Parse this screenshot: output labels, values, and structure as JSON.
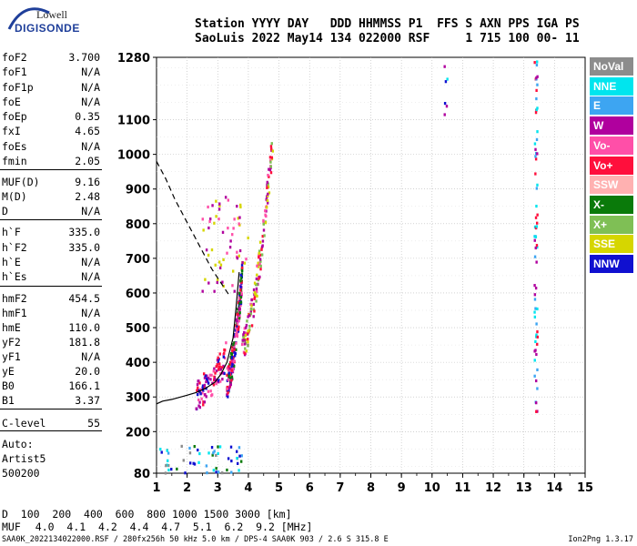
{
  "logo": {
    "line1": "Lowell",
    "line2": "DIGISONDE"
  },
  "header": {
    "line1": "Station YYYY DAY   DDD HHMMSS P1  FFS S AXN PPS IGA PS",
    "line2": "SaoLuis 2022 May14 134 022000 RSF     1 715 100 00- 11"
  },
  "params": [
    {
      "name": "foF2",
      "value": "3.700"
    },
    {
      "name": "foF1",
      "value": "N/A"
    },
    {
      "name": "foF1p",
      "value": "N/A"
    },
    {
      "name": "foE",
      "value": "N/A"
    },
    {
      "name": "foEp",
      "value": "0.35"
    },
    {
      "name": "fxI",
      "value": "4.65"
    },
    {
      "name": "foEs",
      "value": "N/A"
    },
    {
      "name": "fmin",
      "value": "2.05"
    },
    {
      "name": "MUF(D)",
      "value": "9.16"
    },
    {
      "name": "M(D)",
      "value": "2.48"
    },
    {
      "name": "D",
      "value": "N/A"
    },
    {
      "name": "h`F",
      "value": "335.0"
    },
    {
      "name": "h`F2",
      "value": "335.0"
    },
    {
      "name": "h`E",
      "value": "N/A"
    },
    {
      "name": "h`Es",
      "value": "N/A"
    },
    {
      "name": "hmF2",
      "value": "454.5"
    },
    {
      "name": "hmF1",
      "value": "N/A"
    },
    {
      "name": "hmE",
      "value": "110.0"
    },
    {
      "name": "yF2",
      "value": "181.8"
    },
    {
      "name": "yF1",
      "value": "N/A"
    },
    {
      "name": "yE",
      "value": "20.0"
    },
    {
      "name": "B0",
      "value": "166.1"
    },
    {
      "name": "B1",
      "value": "3.37"
    },
    {
      "name": "C-level",
      "value": "55"
    }
  ],
  "auto": {
    "line1": "Auto:",
    "line2": "Artist5",
    "line3": "500200"
  },
  "legend": [
    {
      "label": "NoVal",
      "color": "#8c8c8c"
    },
    {
      "label": "NNE",
      "color": "#00e5ee"
    },
    {
      "label": "E",
      "color": "#3da5f2"
    },
    {
      "label": "W",
      "color": "#b0009e"
    },
    {
      "label": "Vo-",
      "color": "#ff4fa8"
    },
    {
      "label": "Vo+",
      "color": "#ff0f3c"
    },
    {
      "label": "SSW",
      "color": "#ffb1b1"
    },
    {
      "label": "X-",
      "color": "#0a7a0a"
    },
    {
      "label": "X+",
      "color": "#7fbf55"
    },
    {
      "label": "SSE",
      "color": "#d6d600"
    },
    {
      "label": "NNW",
      "color": "#1010d0"
    }
  ],
  "muf_table": {
    "d_label": "D",
    "d_values": "  100  200  400  600  800 1000 1500 3000 [km]",
    "muf_label": "MUF",
    "muf_values": "4.0  4.1  4.2  4.4  4.7  5.1  6.2  9.2 [MHz]"
  },
  "footer": {
    "left": "SAA0K_2022134022000.RSF / 280fx256h 50 kHz 5.0 km / DPS-4 SAA0K 903 / 2.6 S 315.8 E",
    "right": "Ion2Png 1.3.17"
  },
  "chart_data": {
    "type": "scatter",
    "title": "",
    "xlabel": "",
    "ylabel": "",
    "xlim": [
      1,
      15
    ],
    "ylim": [
      80,
      1280
    ],
    "x_ticks": [
      1,
      2,
      3,
      4,
      5,
      6,
      7,
      8,
      9,
      10,
      11,
      12,
      13,
      14,
      15
    ],
    "y_ticks": [
      80,
      200,
      300,
      400,
      500,
      600,
      700,
      800,
      900,
      1000,
      1100,
      1280
    ],
    "grid": true,
    "virtual_height_profile": {
      "x": [
        1.0,
        1.2,
        1.5,
        2.0,
        2.3,
        2.6,
        2.9,
        3.1,
        3.3,
        3.5,
        3.6,
        3.7
      ],
      "y": [
        280,
        288,
        293,
        305,
        313,
        325,
        342,
        365,
        400,
        470,
        560,
        660
      ]
    },
    "true_height_profile": {
      "x": [
        1.0,
        1.3,
        1.6,
        1.9,
        2.2,
        2.5,
        2.8,
        3.1,
        3.4
      ],
      "y": [
        980,
        930,
        870,
        820,
        770,
        720,
        670,
        630,
        590
      ]
    },
    "echo_clusters": [
      {
        "name": "F-trace-core",
        "x": [
          3.3,
          3.8
        ],
        "y": [
          340,
          650
        ],
        "count": 220,
        "colors": [
          "#b0009e",
          "#ff0f3c",
          "#ff4fa8",
          "#0a7a0a",
          "#1010d0"
        ]
      },
      {
        "name": "F-trace-lower",
        "x": [
          2.3,
          3.3
        ],
        "y": [
          310,
          420
        ],
        "count": 90,
        "colors": [
          "#b0009e",
          "#1010d0",
          "#ff4fa8",
          "#ff0f3c"
        ]
      },
      {
        "name": "F-trace-upper",
        "x": [
          3.8,
          4.8
        ],
        "y": [
          450,
          1040
        ],
        "count": 150,
        "colors": [
          "#b0009e",
          "#ff4fa8",
          "#ff0f3c",
          "#d6d600",
          "#7fbf55"
        ]
      },
      {
        "name": "spread-F",
        "x": [
          2.5,
          4.0
        ],
        "y": [
          600,
          880
        ],
        "count": 60,
        "colors": [
          "#b0009e",
          "#ff4fa8",
          "#d6d600"
        ]
      },
      {
        "name": "low-echoes",
        "x": [
          1.0,
          3.8
        ],
        "y": [
          80,
          160
        ],
        "count": 55,
        "colors": [
          "#1010d0",
          "#00e5ee",
          "#3da5f2",
          "#0a7a0a",
          "#8c8c8c"
        ]
      },
      {
        "name": "line-13.4",
        "x": [
          13.35,
          13.45
        ],
        "y": [
          240,
          1280
        ],
        "count": 70,
        "colors": [
          "#b0009e",
          "#00e5ee",
          "#ff0f3c",
          "#3da5f2"
        ]
      },
      {
        "name": "line-10.5",
        "x": [
          10.4,
          10.55
        ],
        "y": [
          1100,
          1280
        ],
        "count": 6,
        "colors": [
          "#1010d0",
          "#00e5ee",
          "#b0009e"
        ]
      }
    ]
  }
}
